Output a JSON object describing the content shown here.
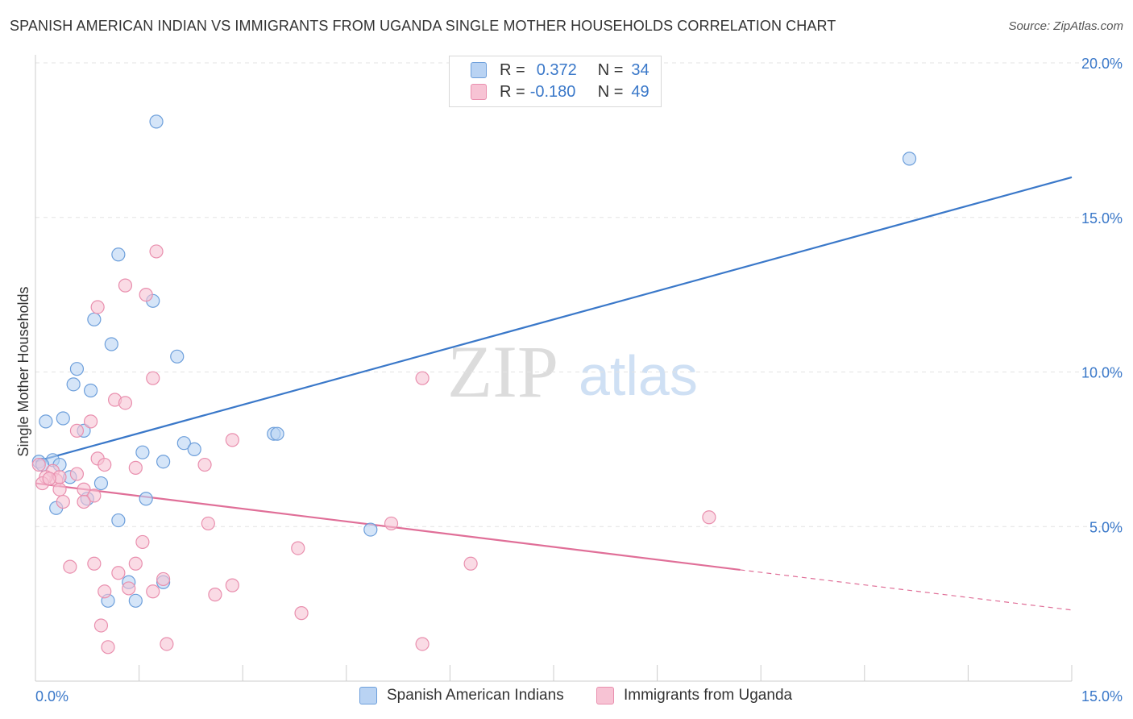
{
  "title": "SPANISH AMERICAN INDIAN VS IMMIGRANTS FROM UGANDA SINGLE MOTHER HOUSEHOLDS CORRELATION CHART",
  "source": "Source: ZipAtlas.com",
  "watermark": {
    "zip": "ZIP",
    "atlas": "atlas"
  },
  "legend_top": {
    "row1": {
      "r_label": "R =",
      "r_value": "0.372",
      "n_label": "N =",
      "n_value": "34"
    },
    "row2": {
      "r_label": "R =",
      "r_value": "-0.180",
      "n_label": "N =",
      "n_value": "49"
    }
  },
  "colors": {
    "blue_fill": "#b9d3f3",
    "blue_stroke": "#6d9fdb",
    "blue_line": "#3a78c9",
    "pink_fill": "#f7c3d4",
    "pink_stroke": "#e98fae",
    "pink_line": "#e06f98",
    "axis_text": "#3a78c9"
  },
  "chart_data": {
    "type": "scatter",
    "title": "SPANISH AMERICAN INDIAN VS IMMIGRANTS FROM UGANDA SINGLE MOTHER HOUSEHOLDS CORRELATION CHART",
    "xlabel": "",
    "ylabel": "Single Mother Households",
    "xlim": [
      0,
      15
    ],
    "ylim": [
      0,
      20
    ],
    "x_tick_labels": [
      "0.0%",
      "15.0%"
    ],
    "y_ticks": [
      5,
      10,
      15,
      20
    ],
    "y_tick_labels": [
      "5.0%",
      "10.0%",
      "15.0%",
      "20.0%"
    ],
    "series": [
      {
        "name": "Spanish American Indians",
        "r": 0.372,
        "n": 34,
        "points": [
          [
            1.75,
            18.1
          ],
          [
            12.65,
            16.9
          ],
          [
            1.2,
            13.8
          ],
          [
            1.7,
            12.3
          ],
          [
            0.85,
            11.7
          ],
          [
            1.1,
            10.9
          ],
          [
            2.05,
            10.5
          ],
          [
            0.6,
            10.1
          ],
          [
            0.55,
            9.6
          ],
          [
            0.8,
            9.4
          ],
          [
            0.4,
            8.5
          ],
          [
            0.15,
            8.4
          ],
          [
            0.7,
            8.1
          ],
          [
            3.45,
            8.0
          ],
          [
            3.5,
            8.0
          ],
          [
            2.15,
            7.7
          ],
          [
            2.3,
            7.5
          ],
          [
            1.55,
            7.4
          ],
          [
            1.85,
            7.1
          ],
          [
            0.25,
            7.15
          ],
          [
            0.05,
            7.1
          ],
          [
            0.35,
            7.0
          ],
          [
            0.1,
            7.0
          ],
          [
            0.5,
            6.6
          ],
          [
            0.95,
            6.4
          ],
          [
            0.75,
            5.9
          ],
          [
            1.6,
            5.9
          ],
          [
            0.3,
            5.6
          ],
          [
            1.2,
            5.2
          ],
          [
            4.85,
            4.9
          ],
          [
            1.35,
            3.2
          ],
          [
            1.85,
            3.2
          ],
          [
            1.05,
            2.6
          ],
          [
            1.45,
            2.6
          ]
        ],
        "trend": {
          "x": [
            0,
            15
          ],
          "y": [
            7.1,
            16.3
          ]
        }
      },
      {
        "name": "Immigrants from Uganda",
        "r": -0.18,
        "n": 49,
        "points": [
          [
            1.75,
            13.9
          ],
          [
            1.3,
            12.8
          ],
          [
            1.6,
            12.5
          ],
          [
            0.9,
            12.1
          ],
          [
            1.7,
            9.8
          ],
          [
            5.6,
            9.8
          ],
          [
            1.15,
            9.1
          ],
          [
            1.3,
            9.0
          ],
          [
            0.8,
            8.4
          ],
          [
            0.6,
            8.1
          ],
          [
            2.85,
            7.8
          ],
          [
            0.9,
            7.2
          ],
          [
            1.0,
            7.0
          ],
          [
            2.45,
            7.0
          ],
          [
            1.45,
            6.9
          ],
          [
            0.05,
            7.0
          ],
          [
            0.25,
            6.8
          ],
          [
            0.6,
            6.7
          ],
          [
            0.3,
            6.5
          ],
          [
            0.15,
            6.6
          ],
          [
            0.1,
            6.4
          ],
          [
            0.35,
            6.2
          ],
          [
            0.7,
            6.2
          ],
          [
            0.85,
            6.0
          ],
          [
            0.4,
            5.8
          ],
          [
            0.7,
            5.8
          ],
          [
            2.5,
            5.1
          ],
          [
            5.15,
            5.1
          ],
          [
            9.75,
            5.3
          ],
          [
            1.55,
            4.5
          ],
          [
            3.8,
            4.3
          ],
          [
            0.5,
            3.7
          ],
          [
            0.85,
            3.8
          ],
          [
            1.45,
            3.8
          ],
          [
            6.3,
            3.8
          ],
          [
            1.2,
            3.5
          ],
          [
            1.85,
            3.3
          ],
          [
            1.35,
            3.0
          ],
          [
            2.85,
            3.1
          ],
          [
            1.7,
            2.9
          ],
          [
            2.6,
            2.8
          ],
          [
            1.0,
            2.9
          ],
          [
            3.85,
            2.2
          ],
          [
            0.95,
            1.8
          ],
          [
            1.05,
            1.1
          ],
          [
            1.9,
            1.2
          ],
          [
            5.6,
            1.2
          ],
          [
            0.35,
            6.6
          ],
          [
            0.2,
            6.55
          ]
        ],
        "trend": {
          "x": [
            0,
            10.2
          ],
          "y": [
            6.4,
            3.6
          ]
        },
        "trend_dashed": {
          "x": [
            10.2,
            15
          ],
          "y": [
            3.6,
            2.3
          ]
        }
      }
    ]
  },
  "bottom_legend": [
    {
      "label": "Spanish American Indians"
    },
    {
      "label": "Immigrants from Uganda"
    }
  ]
}
